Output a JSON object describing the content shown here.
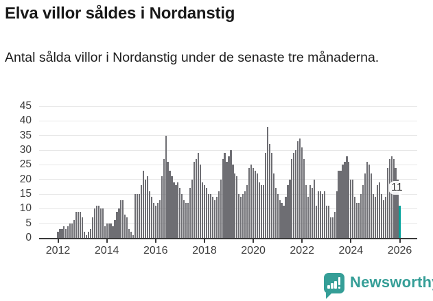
{
  "header": {
    "title": "Elva villor såldes i Nordanstig",
    "subtitle": "Antal sålda villor i Nordanstig under de senaste tre månaderna."
  },
  "chart_data": {
    "type": "bar",
    "title": "Elva villor såldes i Nordanstig",
    "subtitle": "Antal sålda villor i Nordanstig under de senaste tre månaderna.",
    "unit": "antal sålda villor (rullande 3 månader)",
    "frequency": "monthly",
    "x_start": "2012-01",
    "x_end": "2026-01",
    "values": [
      2,
      3,
      3,
      4,
      3,
      4,
      5,
      5,
      6,
      9,
      9,
      9,
      7,
      2,
      1,
      2,
      3,
      7,
      10,
      11,
      11,
      10,
      10,
      4,
      5,
      5,
      5,
      4,
      6,
      9,
      10,
      13,
      13,
      8,
      7,
      3,
      2,
      1,
      15,
      15,
      15,
      18,
      23,
      20,
      21,
      16,
      14,
      12,
      11,
      12,
      13,
      21,
      27,
      35,
      26,
      23,
      21,
      19,
      18,
      19,
      17,
      15,
      13,
      12,
      12,
      17,
      20,
      26,
      27,
      29,
      25,
      19,
      18,
      17,
      15,
      15,
      14,
      13,
      14,
      16,
      20,
      27,
      29,
      26,
      28,
      30,
      25,
      22,
      21,
      15,
      14,
      15,
      16,
      18,
      24,
      25,
      24,
      23,
      22,
      19,
      18,
      18,
      29,
      38,
      32,
      29,
      22,
      17,
      15,
      13,
      12,
      11,
      14,
      18,
      20,
      27,
      29,
      30,
      33,
      34,
      31,
      27,
      18,
      14,
      18,
      17,
      20,
      11,
      16,
      16,
      15,
      16,
      11,
      11,
      7,
      7,
      9,
      16,
      23,
      23,
      25,
      26,
      28,
      26,
      20,
      20,
      14,
      12,
      12,
      15,
      18,
      22,
      26,
      25,
      22,
      15,
      14,
      18,
      19,
      15,
      13,
      14,
      24,
      27,
      28,
      27,
      24,
      20,
      11
    ],
    "last_value": 11,
    "last_value_label": "11",
    "highlight_last": true,
    "y_ticks": [
      0,
      5,
      10,
      15,
      20,
      25,
      30,
      35,
      40,
      45
    ],
    "ylim": [
      0,
      45
    ],
    "x_tick_labels": [
      "2012",
      "2014",
      "2016",
      "2018",
      "2020",
      "2022",
      "2024",
      "2026"
    ],
    "grid": true,
    "legend": "none",
    "bar_color": "#6e6e73",
    "highlight_color": "#00a29b"
  },
  "annotation": {
    "last_value_label": "11"
  },
  "footer": {
    "brand": "Newsworthy",
    "logo_icon": "bar-chart-speech-bubble-icon",
    "brand_color": "#359e97"
  },
  "colors": {
    "background": "#ffffff",
    "bar": "#6e6e73",
    "highlight": "#00a29b",
    "gridline": "#e7e7e7",
    "axis_text": "#3c3c3c",
    "title_text": "#191919"
  }
}
